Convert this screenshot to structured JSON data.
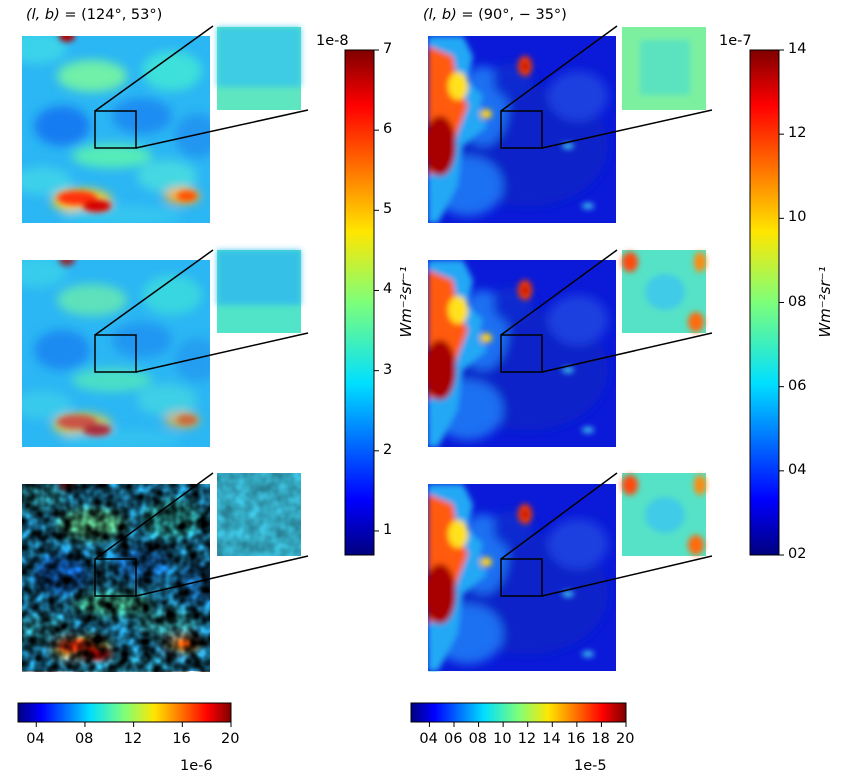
{
  "left_column": {
    "title_lhs": "(l, b)",
    "title_rhs": " = (124°, 53°)",
    "colormap": "jet",
    "colorbar_right": {
      "ticks": [
        "1",
        "2",
        "3",
        "4",
        "5",
        "6",
        "7"
      ],
      "tick_values": [
        1,
        2,
        3,
        4,
        5,
        6,
        7
      ],
      "range": [
        0.7,
        7.0
      ],
      "offset_text": "1e-8",
      "label": "Wm⁻²sr⁻¹"
    },
    "colorbar_bottom": {
      "ticks": [
        "04",
        "08",
        "12",
        "16",
        "20"
      ],
      "tick_values": [
        0.4,
        0.8,
        1.2,
        1.6,
        2.0
      ],
      "range": [
        0.25,
        2.0
      ],
      "offset_text": "1e-6"
    }
  },
  "right_column": {
    "title_lhs": "(l, b)",
    "title_rhs": " = (90°,  − 35°)",
    "colormap": "jet",
    "colorbar_right": {
      "ticks": [
        "02",
        "04",
        "06",
        "08",
        "10",
        "12",
        "14"
      ],
      "tick_values": [
        0.2,
        0.4,
        0.6,
        0.8,
        1.0,
        1.2,
        1.4
      ],
      "range": [
        0.2,
        1.4
      ],
      "offset_text": "1e-7",
      "label": "Wm⁻²sr⁻¹"
    },
    "colorbar_bottom": {
      "ticks": [
        "04",
        "06",
        "08",
        "10",
        "12",
        "14",
        "16",
        "18",
        "20"
      ],
      "tick_values": [
        0.4,
        0.6,
        0.8,
        1.0,
        1.2,
        1.4,
        1.6,
        1.8,
        2.0
      ],
      "range": [
        0.25,
        2.0
      ],
      "offset_text": "1e-5"
    }
  },
  "chart_data": [
    {
      "type": "heatmap",
      "colormap": "jet",
      "rows": 3,
      "columns": 2,
      "panels": [
        "left-row1",
        "left-row2",
        "left-row3",
        "right-row1",
        "right-row2",
        "right-row3"
      ],
      "insets": "each panel has a zoomed inset of the central boxed region"
    }
  ]
}
